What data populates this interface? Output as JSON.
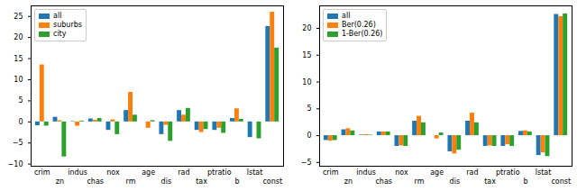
{
  "chart_data": [
    {
      "type": "bar",
      "categories": [
        "crim",
        "zn",
        "indus",
        "chas",
        "nox",
        "rm",
        "age",
        "dis",
        "rad",
        "tax",
        "ptratio",
        "b",
        "lstat",
        "const"
      ],
      "series": [
        {
          "name": "all",
          "color": "#1f77b4",
          "values": [
            -0.9,
            1.1,
            0.1,
            0.7,
            -2.0,
            2.7,
            0.0,
            -3.0,
            2.7,
            -2.0,
            -2.0,
            0.8,
            -3.7,
            22.6
          ]
        },
        {
          "name": "suburbs",
          "color": "#ff7f0e",
          "values": [
            13.5,
            0.3,
            -1.0,
            0.4,
            0.5,
            7.0,
            -1.5,
            -0.8,
            1.6,
            -2.5,
            -1.5,
            3.1,
            0.0,
            26.0
          ]
        },
        {
          "name": "city",
          "color": "#2ca02c",
          "values": [
            -1.0,
            -8.3,
            0.2,
            0.8,
            -3.0,
            1.6,
            0.3,
            -4.6,
            3.2,
            -1.8,
            -2.7,
            0.6,
            -4.0,
            17.5
          ]
        }
      ],
      "ylim": [
        -10.5,
        27.5
      ],
      "yticks": [
        -10,
        -5,
        0,
        5,
        10,
        15,
        20,
        25
      ],
      "legend": "upper left"
    },
    {
      "type": "bar",
      "categories": [
        "crim",
        "zn",
        "indus",
        "chas",
        "nox",
        "rm",
        "age",
        "dis",
        "rad",
        "tax",
        "ptratio",
        "b",
        "lstat",
        "const"
      ],
      "series": [
        {
          "name": "all",
          "color": "#1f77b4",
          "values": [
            -0.9,
            1.1,
            0.1,
            0.7,
            -2.0,
            2.7,
            0.0,
            -3.0,
            2.7,
            -2.0,
            -2.0,
            0.8,
            -3.7,
            22.6
          ]
        },
        {
          "name": "Ber(0.26)",
          "color": "#ff7f0e",
          "values": [
            -1.0,
            1.3,
            0.2,
            0.7,
            -1.9,
            3.6,
            -0.6,
            -3.4,
            4.2,
            -1.9,
            -1.7,
            0.9,
            -3.2,
            22.2
          ]
        },
        {
          "name": "1-Ber(0.26)",
          "color": "#2ca02c",
          "values": [
            -0.9,
            0.9,
            0.1,
            0.7,
            -2.0,
            2.4,
            0.5,
            -2.7,
            2.4,
            -2.0,
            -2.0,
            0.7,
            -3.9,
            22.7
          ]
        }
      ],
      "ylim": [
        -5.7,
        24.2
      ],
      "yticks": [
        -5,
        0,
        5,
        10,
        15,
        20
      ],
      "legend": "upper left"
    }
  ]
}
